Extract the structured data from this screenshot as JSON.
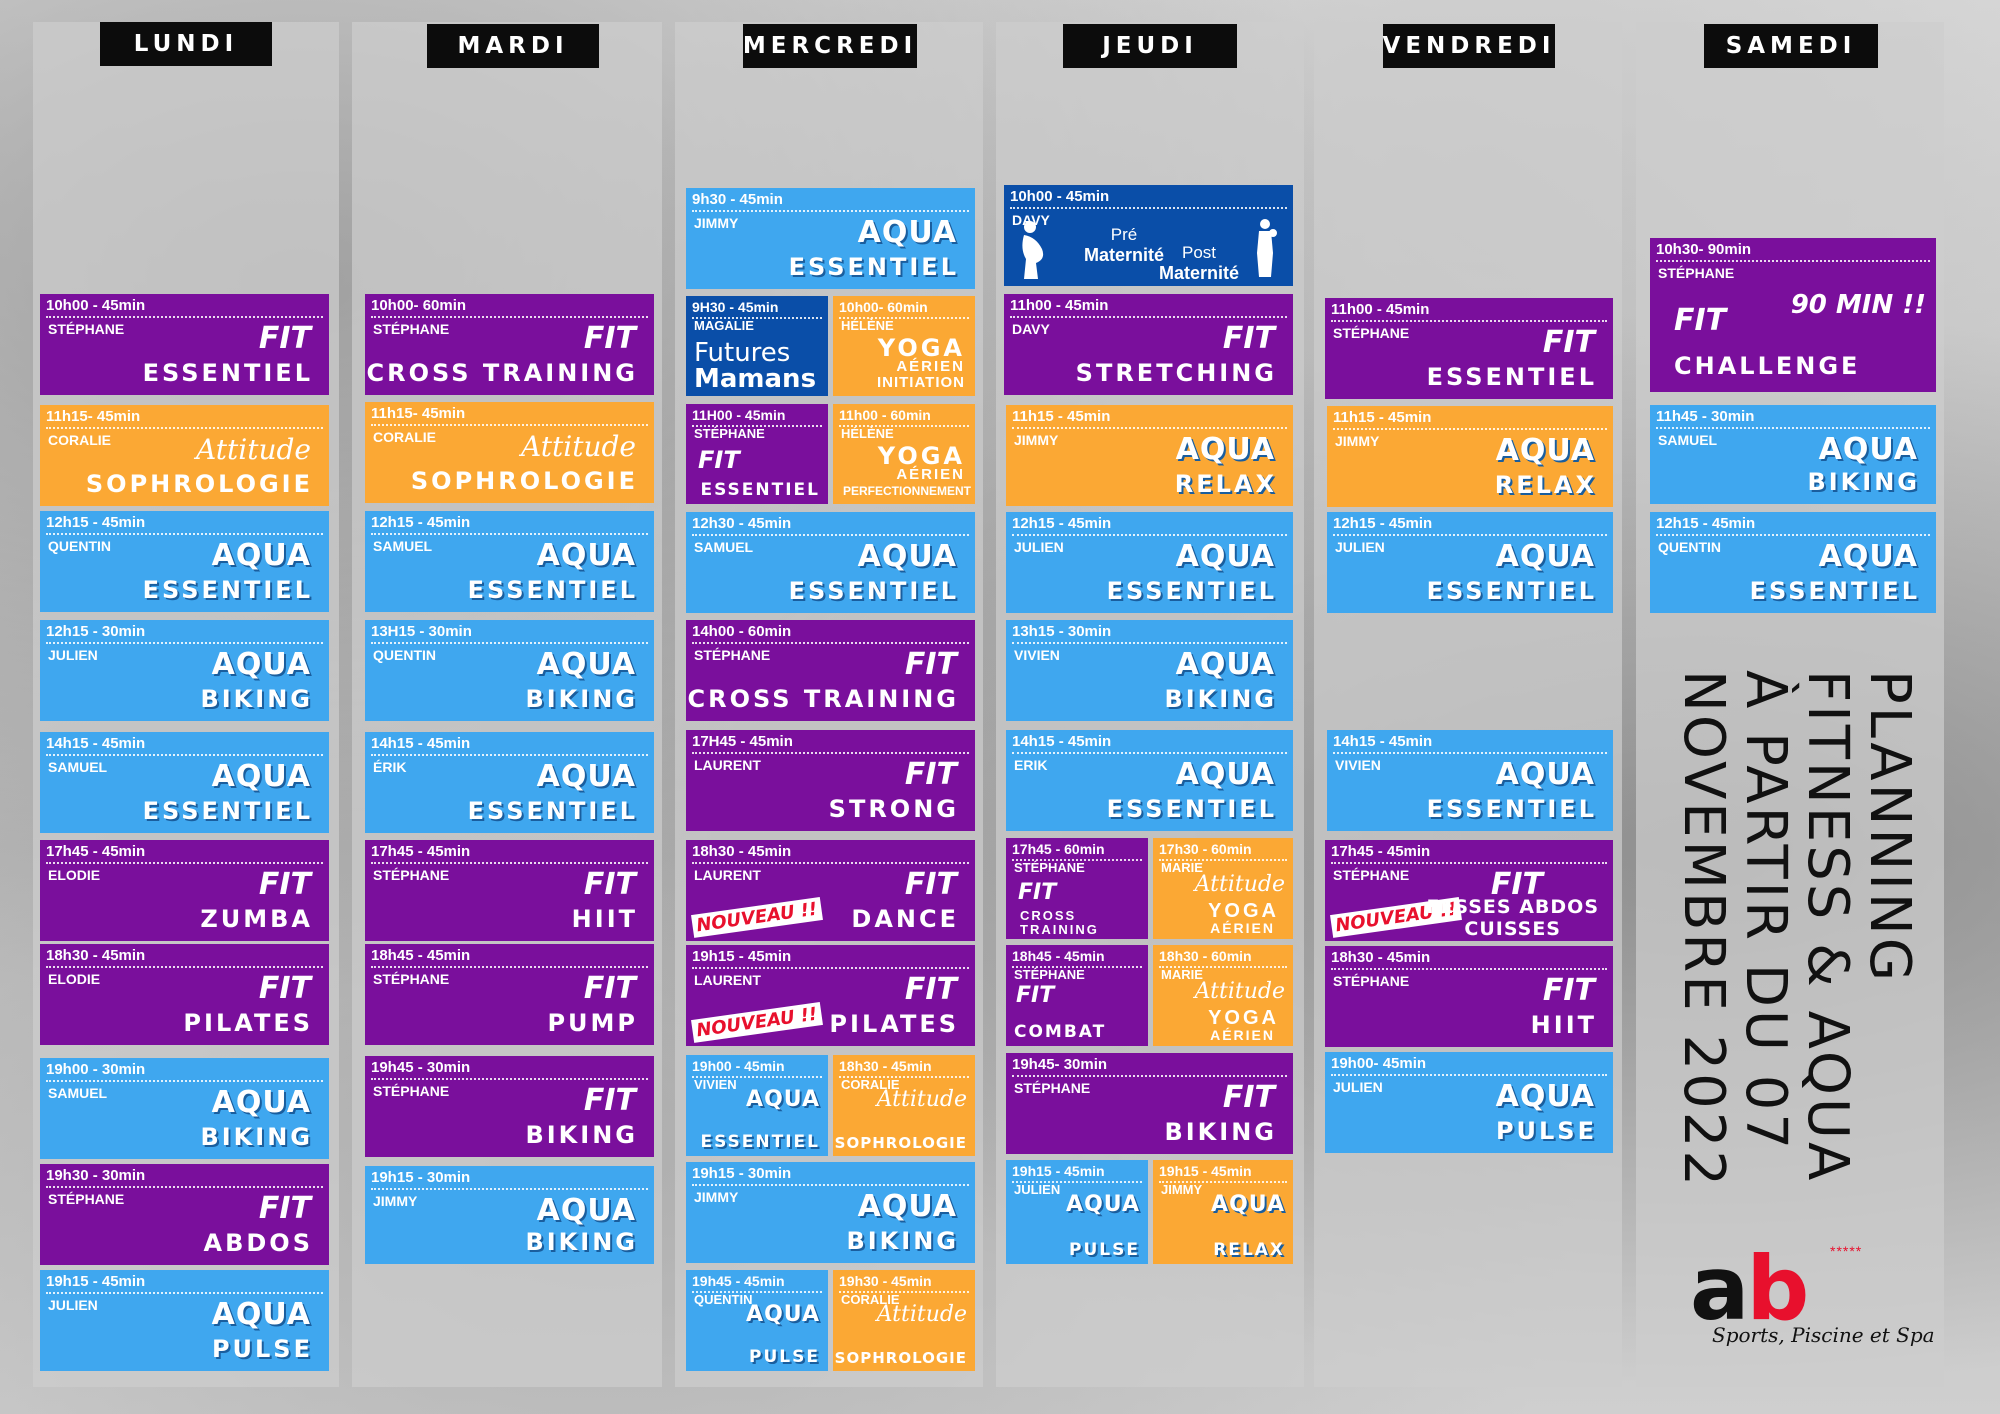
{
  "days": [
    "LUNDI",
    "MARDI",
    "MERCREDI",
    "JEUDI",
    "VENDREDI",
    "SAMEDI"
  ],
  "title": {
    "line1": "PLANNING",
    "line2": "FITNESS & AQUA",
    "line3": "À PARTIR DU 07",
    "line4": "NOVEMBRE 2022"
  },
  "logo": {
    "a": "a",
    "b": "b",
    "stars": "*****",
    "subtitle": "Sports, Piscine et Spa"
  },
  "colors": {
    "purple": "#7a0f9c",
    "blue": "#3fa7ef",
    "orange": "#fba834",
    "navy": "#0a4ea8",
    "accent_red": "#e8102d"
  },
  "badges": {
    "nouveau": "NOUVEAU !!"
  },
  "lundi": [
    {
      "time": "10h00 - 45min",
      "coach": "STÉPHANE",
      "brand": "FIT",
      "name": "ESSENTIEL"
    },
    {
      "time": "11h15- 45min",
      "coach": "CORALIE",
      "brand": "Attitude",
      "name": "SOPHROLOGIE"
    },
    {
      "time": "12h15 - 45min",
      "coach": "QUENTIN",
      "brand": "AQUA",
      "name": "ESSENTIEL"
    },
    {
      "time": "12h15 - 30min",
      "coach": "JULIEN",
      "brand": "AQUA",
      "name": "BIKING"
    },
    {
      "time": "14h15 - 45min",
      "coach": "SAMUEL",
      "brand": "AQUA",
      "name": "ESSENTIEL"
    },
    {
      "time": "17h45 - 45min",
      "coach": "ELODIE",
      "brand": "FIT",
      "name": "ZUMBA"
    },
    {
      "time": "18h30 - 45min",
      "coach": "ELODIE",
      "brand": "FIT",
      "name": "PILATES"
    },
    {
      "time": "19h00 - 30min",
      "coach": "SAMUEL",
      "brand": "AQUA",
      "name": "BIKING"
    },
    {
      "time": "19h30 - 30min",
      "coach": "STÉPHANE",
      "brand": "FIT",
      "name": "ABDOS"
    },
    {
      "time": "19h15 - 45min",
      "coach": "JULIEN",
      "brand": "AQUA",
      "name": "PULSE"
    }
  ],
  "mardi": [
    {
      "time": "10h00- 60min",
      "coach": "STÉPHANE",
      "brand": "FIT",
      "name": "CROSS TRAINING"
    },
    {
      "time": "11h15- 45min",
      "coach": "CORALIE",
      "brand": "Attitude",
      "name": "SOPHROLOGIE"
    },
    {
      "time": "12h15 - 45min",
      "coach": "SAMUEL",
      "brand": "AQUA",
      "name": "ESSENTIEL"
    },
    {
      "time": "13H15 - 30min",
      "coach": "QUENTIN",
      "brand": "AQUA",
      "name": "BIKING"
    },
    {
      "time": "14h15 - 45min",
      "coach": "ÉRIK",
      "brand": "AQUA",
      "name": "ESSENTIEL"
    },
    {
      "time": "17h45 - 45min",
      "coach": "STÉPHANE",
      "brand": "FIT",
      "name": "HIIT"
    },
    {
      "time": "18h45 - 45min",
      "coach": "STÉPHANE",
      "brand": "FIT",
      "name": "PUMP"
    },
    {
      "time": "19h45 - 30min",
      "coach": "STÉPHANE",
      "brand": "FIT",
      "name": "BIKING"
    },
    {
      "time": "19h15 - 30min",
      "coach": "JIMMY",
      "brand": "AQUA",
      "name": "BIKING"
    }
  ],
  "mercredi": {
    "aqua_essentiel_930": {
      "time": "9h30 - 45min",
      "coach": "JIMMY",
      "brand": "AQUA",
      "name": "ESSENTIEL"
    },
    "futures_mamans": {
      "time": "9H30 - 45min",
      "coach": "MAGALIE",
      "line1": "Futures",
      "line2": "Mamans"
    },
    "yoga_initiation": {
      "time": "10h00- 60min",
      "coach": "HÉLÈNE",
      "brand": "YOGA",
      "line2": "AÉRIEN",
      "line3": "INITIATION"
    },
    "fit_essentiel": {
      "time": "11H00 - 45min",
      "coach": "STÉPHANE",
      "brand": "FIT",
      "name": "ESSENTIEL"
    },
    "yoga_perf": {
      "time": "11h00 - 60min",
      "coach": "HÉLÈNE",
      "brand": "YOGA",
      "line2": "AÉRIEN",
      "line3": "PERFECTIONNEMENT"
    },
    "aqua_essentiel_1230": {
      "time": "12h30 - 45min",
      "coach": "SAMUEL",
      "brand": "AQUA",
      "name": "ESSENTIEL"
    },
    "cross": {
      "time": "14h00 - 60min",
      "coach": "STÉPHANE",
      "brand": "FIT",
      "name": "CROSS TRAINING"
    },
    "strong": {
      "time": "17H45 - 45min",
      "coach": "LAURENT",
      "brand": "FIT",
      "name": "STRONG"
    },
    "dance": {
      "time": "18h30 - 45min",
      "coach": "LAURENT",
      "brand": "FIT",
      "name": "DANCE"
    },
    "pilates": {
      "time": "19h15 - 45min",
      "coach": "LAURENT",
      "brand": "FIT",
      "name": "PILATES"
    },
    "aqua_essentiel_1900": {
      "time": "19h00 - 45min",
      "coach": "VIVIEN",
      "brand": "AQUA",
      "name": "ESSENTIEL"
    },
    "sophro_1830": {
      "time": "18h30 - 45min",
      "coach": "CORALIE",
      "brand": "Attitude",
      "name": "SOPHROLOGIE"
    },
    "aqua_biking": {
      "time": "19h15 - 30min",
      "coach": "JIMMY",
      "brand": "AQUA",
      "name": "BIKING"
    },
    "aqua_pulse": {
      "time": "19h45 - 45min",
      "coach": "QUENTIN",
      "brand": "AQUA",
      "name": "PULSE"
    },
    "sophro_1930": {
      "time": "19h30 - 45min",
      "coach": "CORALIE",
      "brand": "Attitude",
      "name": "SOPHROLOGIE"
    }
  },
  "jeudi": {
    "maternite": {
      "time": "10h00 - 45min",
      "coach": "DAVY",
      "pre1": "Pré",
      "pre2": "Maternité",
      "post1": "Post",
      "post2": "Maternité"
    },
    "stretching": {
      "time": "11h00 - 45min",
      "coach": "DAVY",
      "brand": "FIT",
      "name": "STRETCHING"
    },
    "relax": {
      "time": "11h15 - 45min",
      "coach": "JIMMY",
      "brand": "AQUA",
      "name": "RELAX"
    },
    "essentiel_1215": {
      "time": "12h15 - 45min",
      "coach": "JULIEN",
      "brand": "AQUA",
      "name": "ESSENTIEL"
    },
    "biking_1315": {
      "time": "13h15 - 30min",
      "coach": "VIVIEN",
      "brand": "AQUA",
      "name": "BIKING"
    },
    "essentiel_1415": {
      "time": "14h15 - 45min",
      "coach": "ERIK",
      "brand": "AQUA",
      "name": "ESSENTIEL"
    },
    "cross": {
      "time": "17h45 - 60min",
      "coach": "STÉPHANE",
      "brand": "FIT",
      "name1": "CROSS",
      "name2": "TRAINING"
    },
    "yoga_1730": {
      "time": "17h30 - 60min",
      "coach": "MARIE",
      "brand": "Attitude",
      "line2": "YOGA",
      "line3": "AÉRIEN"
    },
    "combat": {
      "time": "18h45 - 45min",
      "coach": "STÉPHANE",
      "brand": "FIT",
      "name": "COMBAT"
    },
    "yoga_1830": {
      "time": "18h30 - 60min",
      "coach": "MARIE",
      "brand": "Attitude",
      "line2": "YOGA",
      "line3": "AÉRIEN"
    },
    "biking": {
      "time": "19h45- 30min",
      "coach": "STÉPHANE",
      "brand": "FIT",
      "name": "BIKING"
    },
    "pulse": {
      "time": "19h15 - 45min",
      "coach": "JULIEN",
      "brand": "AQUA",
      "name": "PULSE"
    },
    "relax_1915": {
      "time": "19h15 - 45min",
      "coach": "JIMMY",
      "brand": "AQUA",
      "name": "RELAX"
    }
  },
  "vendredi": [
    {
      "time": "11h00 - 45min",
      "coach": "STÉPHANE",
      "brand": "FIT",
      "name": "ESSENTIEL"
    },
    {
      "time": "11h15 - 45min",
      "coach": "JIMMY",
      "brand": "AQUA",
      "name": "RELAX"
    },
    {
      "time": "12h15 - 45min",
      "coach": "JULIEN",
      "brand": "AQUA",
      "name": "ESSENTIEL"
    },
    {
      "time": "14h15 - 45min",
      "coach": "VIVIEN",
      "brand": "AQUA",
      "name": "ESSENTIEL"
    },
    {
      "time": "17h45 - 45min",
      "coach": "STÉPHANE",
      "brand": "FIT",
      "name1": "FESSES ABDOS",
      "name2": "CUISSES"
    },
    {
      "time": "18h30 - 45min",
      "coach": "STÉPHANE",
      "brand": "FIT",
      "name": "HIIT"
    },
    {
      "time": "19h00- 45min",
      "coach": "JULIEN",
      "brand": "AQUA",
      "name": "PULSE"
    }
  ],
  "samedi": [
    {
      "time": "10h30- 90min",
      "coach": "STÉPHANE",
      "brand": "FIT",
      "name": "CHALLENGE",
      "extra": "90 MIN !!"
    },
    {
      "time": "11h45 - 30min",
      "coach": "SAMUEL",
      "brand": "AQUA",
      "name": "BIKING"
    },
    {
      "time": "12h15 - 45min",
      "coach": "QUENTIN",
      "brand": "AQUA",
      "name": "ESSENTIEL"
    }
  ]
}
